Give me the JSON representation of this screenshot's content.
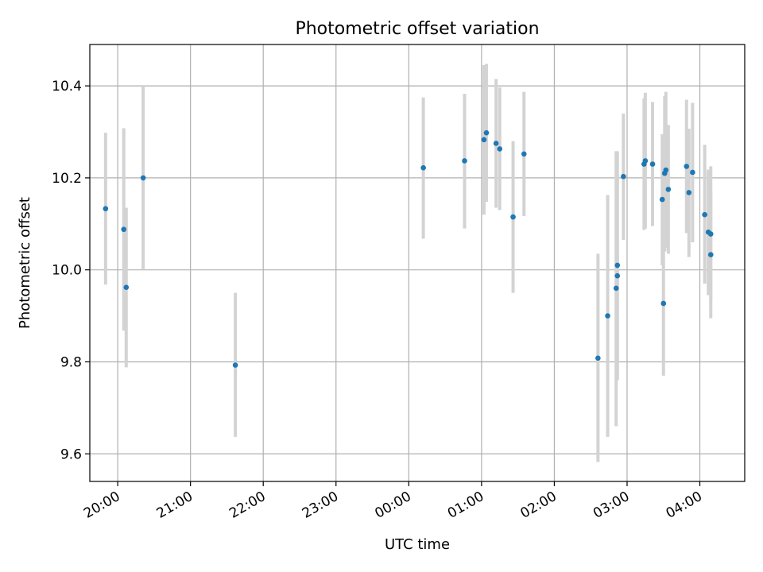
{
  "chart_data": {
    "type": "scatter",
    "title": "Photometric offset variation",
    "xlabel": "UTC time",
    "ylabel": "Photometric offset",
    "x_axis": {
      "kind": "time",
      "range": [
        "19:37",
        "04:37"
      ],
      "ticks": [
        "20:00",
        "21:00",
        "22:00",
        "23:00",
        "00:00",
        "01:00",
        "02:00",
        "03:00",
        "04:00"
      ]
    },
    "y_axis": {
      "range": [
        9.54,
        10.49
      ],
      "ticks": [
        "9.6",
        "9.8",
        "10.0",
        "10.2",
        "10.4"
      ]
    },
    "grid": true,
    "series": [
      {
        "points": [
          {
            "t": "19:50",
            "y": 10.133,
            "lo": 9.968,
            "hi": 10.298
          },
          {
            "t": "20:05",
            "y": 10.088,
            "lo": 9.868,
            "hi": 10.308
          },
          {
            "t": "20:07",
            "y": 9.962,
            "lo": 9.788,
            "hi": 10.135
          },
          {
            "t": "20:21",
            "y": 10.2,
            "lo": 10.0,
            "hi": 10.4
          },
          {
            "t": "21:37",
            "y": 9.793,
            "lo": 9.637,
            "hi": 9.95
          },
          {
            "t": "00:12",
            "y": 10.222,
            "lo": 10.068,
            "hi": 10.375
          },
          {
            "t": "00:46",
            "y": 10.237,
            "lo": 10.09,
            "hi": 10.383
          },
          {
            "t": "01:02",
            "y": 10.283,
            "lo": 10.12,
            "hi": 10.445
          },
          {
            "t": "01:04",
            "y": 10.298,
            "lo": 10.148,
            "hi": 10.448
          },
          {
            "t": "01:12",
            "y": 10.275,
            "lo": 10.135,
            "hi": 10.415
          },
          {
            "t": "01:15",
            "y": 10.263,
            "lo": 10.13,
            "hi": 10.397
          },
          {
            "t": "01:26",
            "y": 10.115,
            "lo": 9.95,
            "hi": 10.28
          },
          {
            "t": "01:35",
            "y": 10.252,
            "lo": 10.117,
            "hi": 10.387
          },
          {
            "t": "02:36",
            "y": 9.808,
            "lo": 9.582,
            "hi": 10.035
          },
          {
            "t": "02:44",
            "y": 9.9,
            "lo": 9.637,
            "hi": 10.163
          },
          {
            "t": "02:51",
            "y": 9.96,
            "lo": 9.66,
            "hi": 10.258
          },
          {
            "t": "02:52",
            "y": 10.01,
            "lo": 9.76,
            "hi": 10.258
          },
          {
            "t": "02:52",
            "y": 9.987,
            "lo": 9.77,
            "hi": 10.205
          },
          {
            "t": "02:57",
            "y": 10.203,
            "lo": 10.065,
            "hi": 10.34
          },
          {
            "t": "03:14",
            "y": 10.23,
            "lo": 10.087,
            "hi": 10.373
          },
          {
            "t": "03:15",
            "y": 10.237,
            "lo": 10.09,
            "hi": 10.385
          },
          {
            "t": "03:21",
            "y": 10.23,
            "lo": 10.095,
            "hi": 10.365
          },
          {
            "t": "03:29",
            "y": 10.153,
            "lo": 10.01,
            "hi": 10.295
          },
          {
            "t": "03:30",
            "y": 9.927,
            "lo": 9.77,
            "hi": 10.085
          },
          {
            "t": "03:31",
            "y": 10.21,
            "lo": 10.04,
            "hi": 10.378
          },
          {
            "t": "03:32",
            "y": 10.217,
            "lo": 10.048,
            "hi": 10.387
          },
          {
            "t": "03:34",
            "y": 10.175,
            "lo": 10.035,
            "hi": 10.315
          },
          {
            "t": "03:49",
            "y": 10.225,
            "lo": 10.08,
            "hi": 10.37
          },
          {
            "t": "03:51",
            "y": 10.168,
            "lo": 10.028,
            "hi": 10.307
          },
          {
            "t": "03:54",
            "y": 10.212,
            "lo": 10.06,
            "hi": 10.363
          },
          {
            "t": "04:04",
            "y": 10.12,
            "lo": 9.97,
            "hi": 10.272
          },
          {
            "t": "04:07",
            "y": 10.082,
            "lo": 9.945,
            "hi": 10.218
          },
          {
            "t": "04:09",
            "y": 10.033,
            "lo": 9.895,
            "hi": 10.17
          },
          {
            "t": "04:09",
            "y": 10.078,
            "lo": 9.932,
            "hi": 10.225
          }
        ]
      }
    ]
  }
}
